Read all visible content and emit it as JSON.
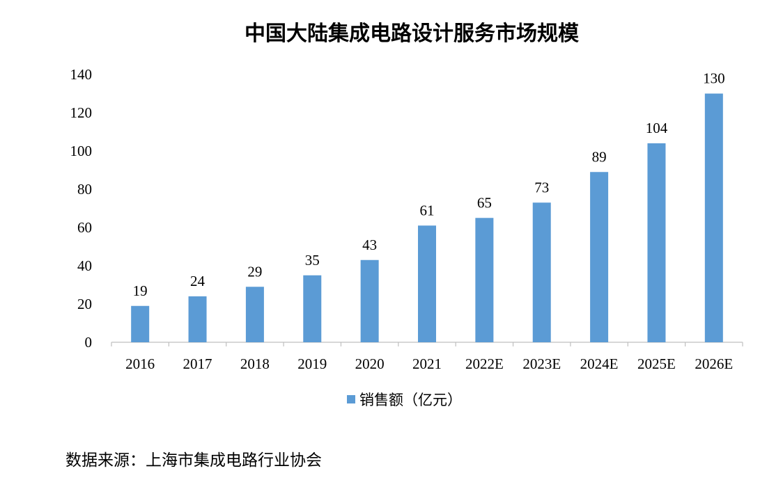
{
  "chart_data": {
    "type": "bar",
    "title": "中国大陆集成电路设计服务市场规模",
    "categories": [
      "2016",
      "2017",
      "2018",
      "2019",
      "2020",
      "2021",
      "2022E",
      "2023E",
      "2024E",
      "2025E",
      "2026E"
    ],
    "series": [
      {
        "name": "销售额（亿元）",
        "values": [
          19,
          24,
          29,
          35,
          43,
          61,
          65,
          73,
          89,
          104,
          130
        ],
        "color": "#5b9bd5"
      }
    ],
    "ylim": [
      0,
      140
    ],
    "yticks": [
      0,
      20,
      40,
      60,
      80,
      100,
      120,
      140
    ],
    "grid": false,
    "legend_position": "bottom",
    "data_labels": [
      "19",
      "24",
      "29",
      "35",
      "43",
      "61",
      "65",
      "73",
      "89",
      "104",
      "130"
    ]
  },
  "source": "数据来源：上海市集成电路行业协会"
}
